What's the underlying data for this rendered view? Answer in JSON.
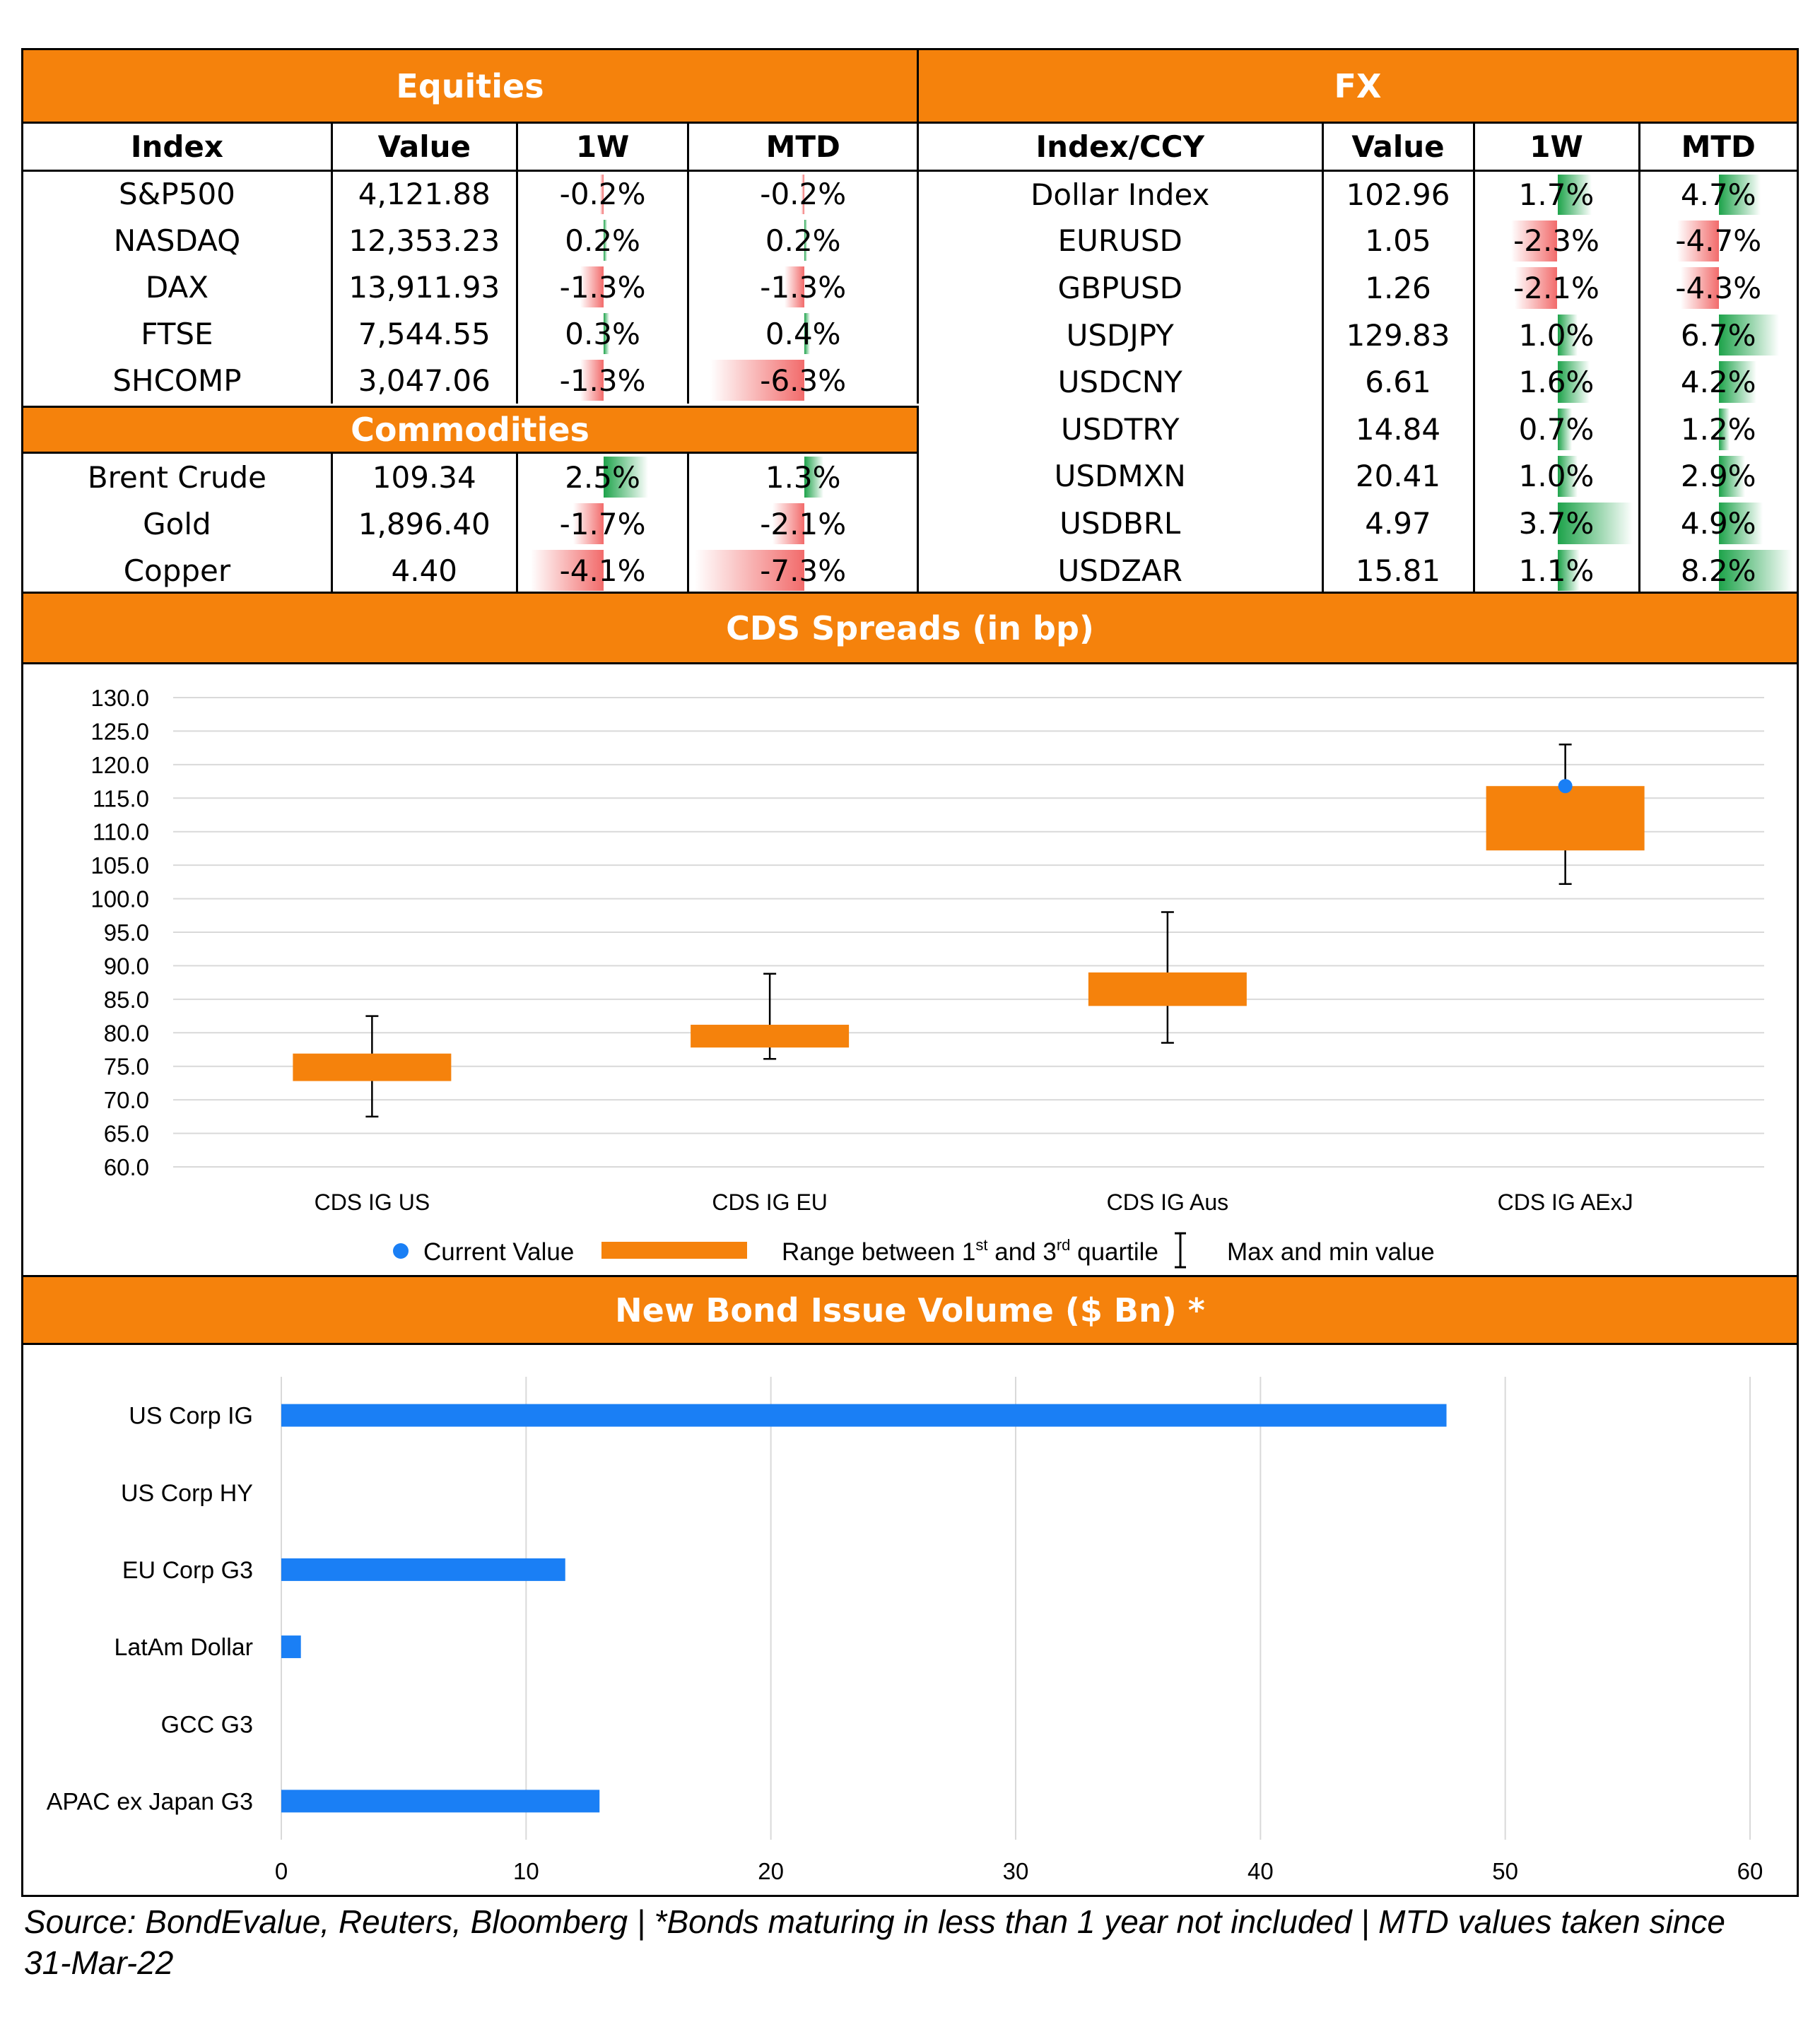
{
  "equities": {
    "title": "Equities",
    "headers": [
      "Index",
      "Value",
      "1W",
      "MTD"
    ],
    "rows": [
      {
        "name": "S&P500",
        "value": "4,121.88",
        "w1": "-0.2%",
        "mtd": "-0.2%",
        "w1_num": -0.2,
        "mtd_num": -0.2
      },
      {
        "name": "NASDAQ",
        "value": "12,353.23",
        "w1": "0.2%",
        "mtd": "0.2%",
        "w1_num": 0.2,
        "mtd_num": 0.2
      },
      {
        "name": "DAX",
        "value": "13,911.93",
        "w1": "-1.3%",
        "mtd": "-1.3%",
        "w1_num": -1.3,
        "mtd_num": -1.3
      },
      {
        "name": "FTSE",
        "value": "7,544.55",
        "w1": "0.3%",
        "mtd": "0.4%",
        "w1_num": 0.3,
        "mtd_num": 0.4
      },
      {
        "name": "SHCOMP",
        "value": "3,047.06",
        "w1": "-1.3%",
        "mtd": "-6.3%",
        "w1_num": -1.3,
        "mtd_num": -6.3
      }
    ]
  },
  "commodities": {
    "title": "Commodities",
    "rows": [
      {
        "name": "Brent Crude",
        "value": "109.34",
        "w1": "2.5%",
        "mtd": "1.3%",
        "w1_num": 2.5,
        "mtd_num": 1.3
      },
      {
        "name": "Gold",
        "value": "1,896.40",
        "w1": "-1.7%",
        "mtd": "-2.1%",
        "w1_num": -1.7,
        "mtd_num": -2.1
      },
      {
        "name": "Copper",
        "value": "4.40",
        "w1": "-4.1%",
        "mtd": "-7.3%",
        "w1_num": -4.1,
        "mtd_num": -7.3
      }
    ]
  },
  "fx": {
    "title": "FX",
    "headers": [
      "Index/CCY",
      "Value",
      "1W",
      "MTD"
    ],
    "rows": [
      {
        "name": "Dollar Index",
        "value": "102.96",
        "w1": "1.7%",
        "mtd": "4.7%",
        "w1_num": 1.7,
        "mtd_num": 4.7
      },
      {
        "name": "EURUSD",
        "value": "1.05",
        "w1": "-2.3%",
        "mtd": "-4.7%",
        "w1_num": -2.3,
        "mtd_num": -4.7
      },
      {
        "name": "GBPUSD",
        "value": "1.26",
        "w1": "-2.1%",
        "mtd": "-4.3%",
        "w1_num": -2.1,
        "mtd_num": -4.3
      },
      {
        "name": "USDJPY",
        "value": "129.83",
        "w1": "1.0%",
        "mtd": "6.7%",
        "w1_num": 1.0,
        "mtd_num": 6.7
      },
      {
        "name": "USDCNY",
        "value": "6.61",
        "w1": "1.6%",
        "mtd": "4.2%",
        "w1_num": 1.6,
        "mtd_num": 4.2
      },
      {
        "name": "USDTRY",
        "value": "14.84",
        "w1": "0.7%",
        "mtd": "1.2%",
        "w1_num": 0.7,
        "mtd_num": 1.2
      },
      {
        "name": "USDMXN",
        "value": "20.41",
        "w1": "1.0%",
        "mtd": "2.9%",
        "w1_num": 1.0,
        "mtd_num": 2.9
      },
      {
        "name": "USDBRL",
        "value": "4.97",
        "w1": "3.7%",
        "mtd": "4.9%",
        "w1_num": 3.7,
        "mtd_num": 4.9
      },
      {
        "name": "USDZAR",
        "value": "15.81",
        "w1": "1.1%",
        "mtd": "8.2%",
        "w1_num": 1.1,
        "mtd_num": 8.2
      }
    ]
  },
  "colors": {
    "accent": "#f5820c",
    "positive": "#1da34a",
    "negative": "#f26b6b",
    "series": "#1a7ff5"
  },
  "chart_data": [
    {
      "type": "box",
      "title": "CDS Spreads (in bp)",
      "categories": [
        "CDS IG US",
        "CDS IG EU",
        "CDS IG Aus",
        "CDS IG AExJ"
      ],
      "q1": [
        72.8,
        77.8,
        84.0,
        107.2
      ],
      "q3": [
        76.9,
        81.2,
        89.0,
        116.8
      ],
      "min": [
        67.5,
        76.1,
        78.5,
        102.2
      ],
      "max": [
        82.5,
        88.8,
        98.0,
        123.0
      ],
      "current": [
        null,
        null,
        null,
        116.8
      ],
      "ylim": [
        60,
        130
      ],
      "yticks": [
        "130.0",
        "125.0",
        "120.0",
        "115.0",
        "110.0",
        "105.0",
        "100.0",
        "95.0",
        "90.0",
        "85.0",
        "80.0",
        "75.0",
        "70.0",
        "65.0",
        "60.0"
      ],
      "legend": {
        "current": "Current Value",
        "range_prefix": "Range between 1",
        "range_sup1": "st",
        "range_mid": " and 3",
        "range_sup2": "rd",
        "range_suffix": " quartile",
        "maxmin": "Max and min value"
      }
    },
    {
      "type": "bar",
      "orientation": "horizontal",
      "title": "New Bond Issue Volume ($ Bn) *",
      "categories": [
        "US Corp IG",
        "US Corp HY",
        "EU Corp G3",
        "LatAm Dollar",
        "GCC G3",
        "APAC ex Japan G3"
      ],
      "values": [
        47.6,
        0,
        11.6,
        0.8,
        0,
        13.0
      ],
      "xlim": [
        0,
        60
      ],
      "xticks": [
        "0",
        "10",
        "20",
        "30",
        "40",
        "50",
        "60"
      ]
    }
  ],
  "footer": "Source: BondEvalue, Reuters, Bloomberg | *Bonds maturing in less than 1 year not included | MTD values taken since 31-Mar-22"
}
